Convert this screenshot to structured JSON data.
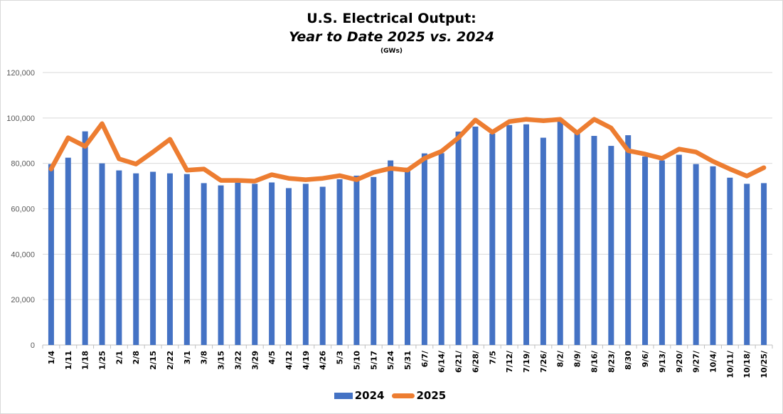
{
  "chart_data": {
    "type": "bar",
    "combo": "bar+line",
    "title": "U.S. Electrical Output:",
    "subtitle": "Year to Date 2025 vs. 2024",
    "units_label": "(GWs)",
    "xlabel": "",
    "ylabel": "",
    "ylim": [
      0,
      120000
    ],
    "yticks": [
      0,
      20000,
      40000,
      60000,
      80000,
      100000,
      120000
    ],
    "ytick_labels": [
      "0",
      "20,000",
      "40,000",
      "60,000",
      "80,000",
      "100,000",
      "120,000"
    ],
    "grid": true,
    "legend_position": "bottom",
    "categories": [
      "1/4",
      "1/11",
      "1/18",
      "1/25",
      "2/1",
      "2/8",
      "2/15",
      "2/22",
      "3/1",
      "3/8",
      "3/15",
      "3/22",
      "3/29",
      "4/5",
      "4/12",
      "4/19",
      "4/26",
      "5/3",
      "5/10",
      "5/17",
      "5/24",
      "5/31",
      "6/7/",
      "6/14/",
      "6/21/",
      "6/28/",
      "7/5",
      "7/12/",
      "7/19/",
      "7/26/",
      "8/2/",
      "8/9/",
      "8/16/",
      "8/23/",
      "8/30",
      "9/6/",
      "9/13/",
      "9/20/",
      "9/27/",
      "10/4/",
      "10/11/",
      "10/18/",
      "10/25/"
    ],
    "series": [
      {
        "name": "2024",
        "kind": "bar",
        "color": "#4472C4",
        "values": [
          79700,
          82500,
          94100,
          80000,
          76900,
          75600,
          76300,
          75600,
          75300,
          71300,
          70300,
          71500,
          71000,
          71600,
          69100,
          71000,
          69700,
          73000,
          74600,
          74000,
          81300,
          78100,
          84400,
          84500,
          94000,
          96200,
          93100,
          96900,
          97200,
          91300,
          98500,
          94600,
          92100,
          87700,
          92400,
          83000,
          81300,
          83800,
          79700,
          78700,
          73700,
          71000,
          71300
        ]
      },
      {
        "name": "2025",
        "kind": "line",
        "color": "#ED7D31",
        "values": [
          77500,
          91300,
          87500,
          97500,
          82000,
          79700,
          85000,
          90600,
          77000,
          77500,
          72500,
          72500,
          72200,
          75000,
          73400,
          72800,
          73400,
          74600,
          72800,
          76000,
          77800,
          77000,
          82200,
          85300,
          91300,
          99100,
          93700,
          98400,
          99400,
          98800,
          99400,
          93400,
          99400,
          95600,
          85600,
          84100,
          82200,
          86300,
          85000,
          80900,
          77500,
          74400,
          78100
        ]
      }
    ]
  },
  "legend": {
    "items": [
      {
        "label": "2024",
        "color": "#4472C4"
      },
      {
        "label": "2025",
        "color": "#ED7D31"
      }
    ]
  },
  "colors": {
    "grid": "#d9d9d9",
    "axis": "#bfbfbf"
  }
}
